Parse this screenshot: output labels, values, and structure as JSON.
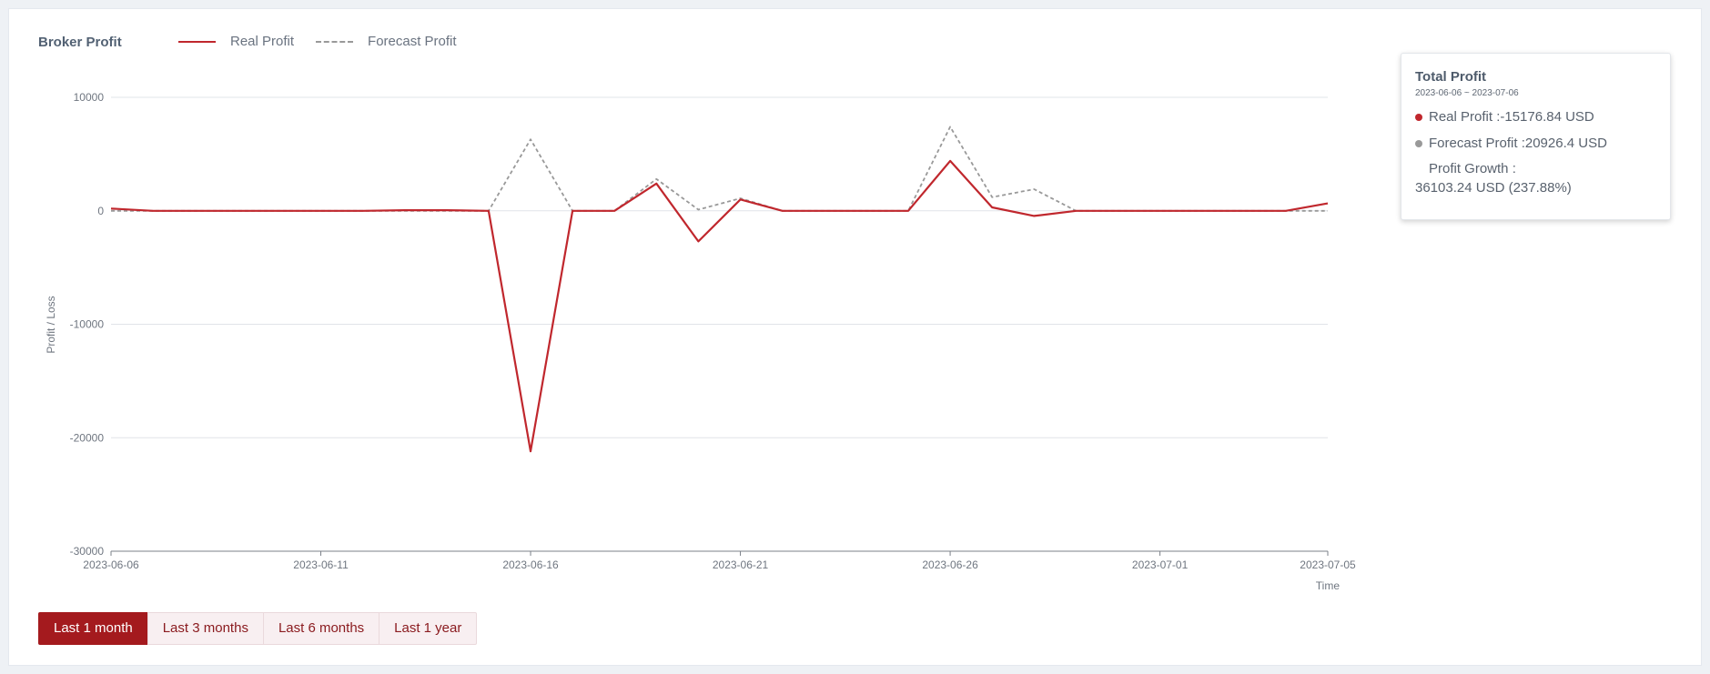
{
  "title": "Broker Profit",
  "legend": {
    "real": "Real Profit",
    "forecast": "Forecast Profit"
  },
  "colors": {
    "real": "#c0272d",
    "forecast": "#999999",
    "active_button": "#a41a1e"
  },
  "summary": {
    "title": "Total Profit",
    "range": "2023-06-06 ~ 2023-07-06",
    "real": "Real Profit :-15176.84 USD",
    "forecast": "Forecast Profit :20926.4 USD",
    "growth_label": "Profit Growth :",
    "growth_value": "36103.24 USD (237.88%)"
  },
  "buttons": [
    "Last 1 month",
    "Last 3 months",
    "Last 6 months",
    "Last 1 year"
  ],
  "active_button": 0,
  "chart_data": {
    "type": "line",
    "title": "Broker Profit",
    "xlabel": "Time",
    "ylabel": "Profit / Loss",
    "x": [
      "2023-06-06",
      "2023-06-07",
      "2023-06-08",
      "2023-06-09",
      "2023-06-10",
      "2023-06-11",
      "2023-06-12",
      "2023-06-13",
      "2023-06-14",
      "2023-06-15",
      "2023-06-16",
      "2023-06-17",
      "2023-06-18",
      "2023-06-19",
      "2023-06-20",
      "2023-06-21",
      "2023-06-22",
      "2023-06-23",
      "2023-06-24",
      "2023-06-25",
      "2023-06-26",
      "2023-06-27",
      "2023-06-28",
      "2023-06-29",
      "2023-06-30",
      "2023-07-01",
      "2023-07-02",
      "2023-07-03",
      "2023-07-04",
      "2023-07-05"
    ],
    "x_ticks": [
      "2023-06-06",
      "2023-06-11",
      "2023-06-16",
      "2023-06-21",
      "2023-06-26",
      "2023-07-01",
      "2023-07-05"
    ],
    "y_ticks": [
      10000,
      0,
      -10000,
      -20000,
      -30000
    ],
    "ylim": [
      -30000,
      10000
    ],
    "grid": true,
    "series": [
      {
        "name": "Real Profit",
        "style": "solid",
        "values": [
          200,
          0,
          0,
          0,
          0,
          0,
          0,
          50,
          50,
          0,
          -21200,
          0,
          0,
          2400,
          -2700,
          1000,
          0,
          0,
          0,
          0,
          4400,
          300,
          -450,
          0,
          0,
          0,
          0,
          0,
          0,
          650
        ]
      },
      {
        "name": "Forecast Profit",
        "style": "dashed",
        "values": [
          0,
          0,
          0,
          0,
          0,
          0,
          0,
          0,
          0,
          0,
          6300,
          0,
          0,
          2800,
          100,
          1100,
          0,
          0,
          0,
          0,
          7400,
          1200,
          1900,
          0,
          0,
          0,
          0,
          0,
          0,
          0
        ]
      }
    ]
  }
}
